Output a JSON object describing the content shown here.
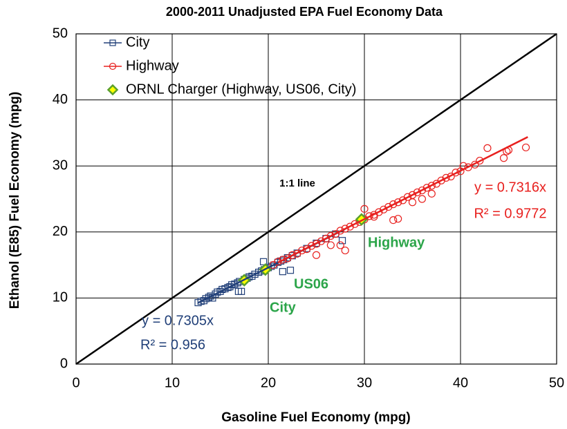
{
  "chart_data": {
    "type": "scatter",
    "title": "2000-2011 Unadjusted EPA Fuel Economy Data",
    "x_label": "Gasoline Fuel Economy (mpg)",
    "y_label": "Ethanol (E85) Fuel Economy (mpg)",
    "xlim": [
      0,
      50
    ],
    "ylim": [
      0,
      50
    ],
    "xticks": [
      0,
      10,
      20,
      30,
      40,
      50
    ],
    "yticks": [
      0,
      10,
      20,
      30,
      40,
      50
    ],
    "grid": true,
    "legend": "upper left",
    "reference_line": {
      "slope": 1
    },
    "series": [
      {
        "name": "City",
        "color": "#203f78",
        "marker": "square",
        "x": [
          12.7,
          13.0,
          13.3,
          13.5,
          13.8,
          14.0,
          14.2,
          14.5,
          14.7,
          15.0,
          15.2,
          15.5,
          15.8,
          16.0,
          16.2,
          16.5,
          16.8,
          17.0,
          17.2,
          16.9,
          17.5,
          17.8,
          18.0,
          18.3,
          18.6,
          19.0,
          19.3,
          19.6,
          20.0,
          20.3,
          20.6,
          21.0,
          21.3,
          21.6,
          19.5,
          22.0,
          22.5,
          23.0,
          24.0,
          25.0,
          26.0,
          27.0,
          27.7,
          21.5,
          22.3
        ],
        "values": [
          9.3,
          9.5,
          9.6,
          9.9,
          10.1,
          10.3,
          10.0,
          10.6,
          10.9,
          11.0,
          11.3,
          11.4,
          11.6,
          11.7,
          12.0,
          12.1,
          12.3,
          12.5,
          11.0,
          11.0,
          12.8,
          13.0,
          13.2,
          13.3,
          13.6,
          13.9,
          14.1,
          14.3,
          14.6,
          14.8,
          15.0,
          15.4,
          15.6,
          15.8,
          15.5,
          16.1,
          16.4,
          16.8,
          17.5,
          18.3,
          19.0,
          19.7,
          18.7,
          14.0,
          14.2
        ],
        "trend": {
          "slope": 0.7305,
          "x": [
            12.7,
            28
          ]
        }
      },
      {
        "name": "Highway",
        "color": "#e8201e",
        "marker": "circle",
        "x": [
          20.5,
          21.0,
          21.5,
          22.0,
          22.5,
          23.0,
          23.5,
          24.0,
          24.5,
          25.0,
          25.5,
          26.0,
          26.5,
          27.0,
          27.5,
          28.0,
          28.5,
          29.0,
          29.5,
          30.0,
          30.5,
          31.0,
          31.5,
          32.0,
          32.5,
          33.0,
          33.5,
          34.0,
          34.5,
          35.0,
          35.5,
          36.0,
          36.5,
          37.0,
          37.5,
          38.0,
          38.5,
          39.0,
          39.5,
          40.0,
          40.3,
          40.8,
          41.5,
          42.0,
          42.8,
          44.5,
          44.8,
          45.0,
          46.8,
          26.5,
          27.5,
          28.0,
          31.0,
          33.0,
          35.0,
          36.0,
          30.0,
          33.5,
          37.0,
          25.0
        ],
        "values": [
          15.0,
          15.5,
          15.8,
          16.0,
          16.5,
          16.7,
          17.2,
          17.4,
          17.9,
          18.2,
          18.6,
          19.0,
          19.4,
          19.7,
          20.2,
          20.5,
          20.8,
          21.2,
          21.5,
          21.9,
          22.4,
          22.6,
          23.0,
          23.4,
          23.8,
          24.2,
          24.5,
          24.8,
          25.3,
          25.6,
          26.0,
          26.3,
          26.7,
          27.0,
          27.3,
          27.8,
          28.2,
          28.4,
          29.0,
          29.2,
          30.0,
          29.8,
          30.2,
          30.8,
          32.7,
          31.2,
          32.2,
          32.4,
          32.8,
          18.0,
          18.0,
          17.2,
          22.3,
          21.8,
          24.5,
          25.0,
          23.5,
          22.0,
          25.8,
          16.5
        ],
        "trend": {
          "slope": 0.7316,
          "x": [
            21,
            47
          ]
        }
      },
      {
        "name": "ORNL Charger (Highway, US06, City)",
        "color": "#ffff00",
        "edge_color": "#5aa02c",
        "marker": "diamond",
        "x": [
          29.7,
          19.7,
          17.5
        ],
        "values": [
          21.9,
          14.3,
          12.7
        ]
      }
    ],
    "annotations": [
      {
        "text": "1:1 line",
        "color": "#000000"
      },
      {
        "text": "y = 0.7305x",
        "color": "#203f78"
      },
      {
        "text": "R² = 0.956",
        "color": "#203f78"
      },
      {
        "text": "y = 0.7316x",
        "color": "#e8201e"
      },
      {
        "text": "R² = 0.9772",
        "color": "#e8201e"
      },
      {
        "text": "Highway",
        "color": "#2ca54a"
      },
      {
        "text": "US06",
        "color": "#2ca54a"
      },
      {
        "text": "City",
        "color": "#2ca54a"
      }
    ]
  }
}
